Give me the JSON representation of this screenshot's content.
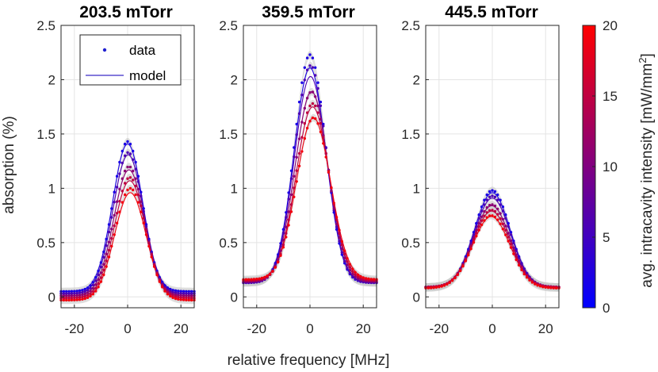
{
  "chart_data": {
    "type": "line",
    "xlabel": "relative frequency [MHz]",
    "ylabel": "absorption (%)",
    "xlim": [
      -25,
      25
    ],
    "ylim": [
      -0.1,
      2.5
    ],
    "x_ticks": [
      -20,
      0,
      20
    ],
    "y_ticks": [
      0,
      0.5,
      1,
      1.5,
      2,
      2.5
    ],
    "grid": true,
    "legend": {
      "position": "top-left",
      "entries": [
        "data",
        "model"
      ]
    },
    "colorbar": {
      "label": "avg. intracavity intensity [mW/mm",
      "label_superscript": "2",
      "label_close": "]",
      "ticks": [
        0,
        5,
        10,
        15,
        20
      ],
      "range": [
        0,
        20
      ],
      "colors": [
        "#0000ff",
        "#ff0000"
      ]
    },
    "panels": [
      {
        "title": "203.5 mTorr",
        "series": [
          {
            "intensity": 2,
            "peak": 1.43,
            "model_peak": 1.41,
            "center": 0.0,
            "width": 7.8,
            "offset": 0.05
          },
          {
            "intensity": 6,
            "peak": 1.33,
            "model_peak": 1.31,
            "center": 0.2,
            "width": 7.9,
            "offset": 0.03
          },
          {
            "intensity": 11,
            "peak": 1.2,
            "model_peak": 1.17,
            "center": 0.5,
            "width": 8.0,
            "offset": 0.01
          },
          {
            "intensity": 15,
            "peak": 1.1,
            "model_peak": 1.07,
            "center": 0.8,
            "width": 8.1,
            "offset": -0.01
          },
          {
            "intensity": 19,
            "peak": 1.0,
            "model_peak": 0.96,
            "center": 1.0,
            "width": 8.2,
            "offset": -0.03
          }
        ]
      },
      {
        "title": "359.5 mTorr",
        "series": [
          {
            "intensity": 2,
            "peak": 2.23,
            "model_peak": 2.11,
            "center": 0.0,
            "width": 8.3,
            "offset": 0.13
          },
          {
            "intensity": 6,
            "peak": 2.13,
            "model_peak": 2.03,
            "center": 0.2,
            "width": 8.4,
            "offset": 0.13
          },
          {
            "intensity": 11,
            "peak": 1.89,
            "model_peak": 1.89,
            "center": 0.6,
            "width": 8.6,
            "offset": 0.14
          },
          {
            "intensity": 15,
            "peak": 1.78,
            "model_peak": 1.75,
            "center": 1.0,
            "width": 8.7,
            "offset": 0.15
          },
          {
            "intensity": 19,
            "peak": 1.65,
            "model_peak": 1.65,
            "center": 1.3,
            "width": 8.9,
            "offset": 0.16
          }
        ]
      },
      {
        "title": "445.5 mTorr",
        "series": [
          {
            "intensity": 2,
            "peak": 0.98,
            "model_peak": 0.96,
            "center": 0.0,
            "width": 9.3,
            "offset": 0.09
          },
          {
            "intensity": 6,
            "peak": 0.93,
            "model_peak": 0.91,
            "center": 0.0,
            "width": 9.4,
            "offset": 0.09
          },
          {
            "intensity": 11,
            "peak": 0.85,
            "model_peak": 0.84,
            "center": -0.2,
            "width": 9.5,
            "offset": 0.09
          },
          {
            "intensity": 15,
            "peak": 0.8,
            "model_peak": 0.79,
            "center": -0.3,
            "width": 9.6,
            "offset": 0.09
          },
          {
            "intensity": 19,
            "peak": 0.75,
            "model_peak": 0.74,
            "center": -0.4,
            "width": 9.7,
            "offset": 0.08
          }
        ]
      }
    ]
  }
}
